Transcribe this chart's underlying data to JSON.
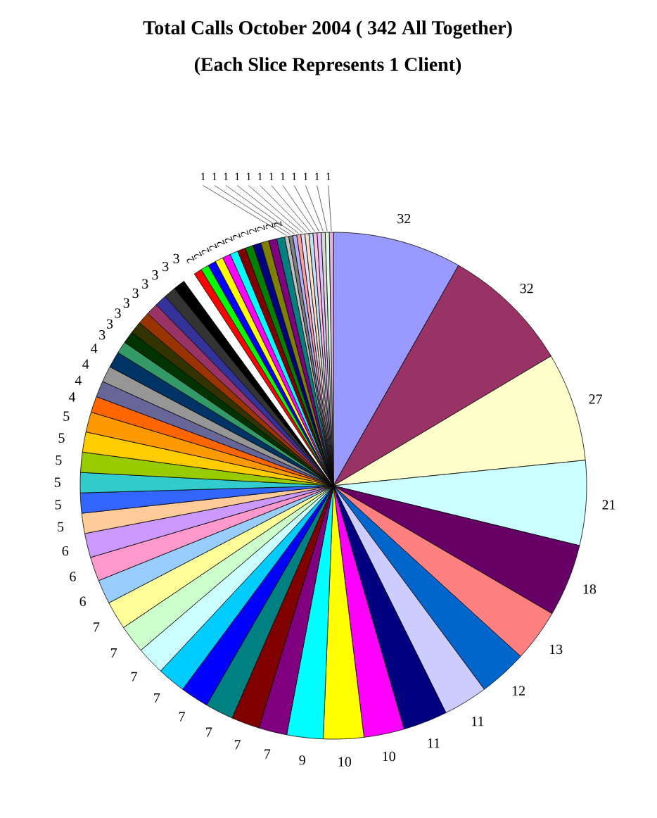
{
  "chart_data": {
    "type": "pie",
    "title": "Total Calls  October 2004 ( 342 All Together)",
    "subtitle": "(Each Slice Represents 1 Client)",
    "data_labels": true,
    "categories": [
      null,
      null,
      null,
      null,
      null,
      null,
      null,
      null,
      null,
      null,
      null,
      null,
      null,
      null,
      null,
      null,
      null,
      null,
      null,
      null,
      null,
      null,
      null,
      null,
      null,
      null,
      null,
      null,
      null,
      null,
      null,
      null,
      null,
      null,
      null,
      null,
      null,
      null,
      null,
      null,
      null,
      null,
      null,
      null,
      null,
      null,
      null,
      null,
      null,
      null,
      null,
      null,
      null,
      null,
      null,
      null,
      null,
      null,
      null,
      null,
      null,
      null,
      null,
      null,
      null,
      null
    ],
    "values": [
      32,
      32,
      27,
      21,
      18,
      13,
      12,
      11,
      11,
      10,
      10,
      9,
      7,
      7,
      7,
      7,
      7,
      7,
      7,
      7,
      6,
      6,
      6,
      5,
      5,
      5,
      5,
      5,
      5,
      4,
      4,
      4,
      4,
      3,
      3,
      3,
      3,
      3,
      3,
      3,
      3,
      3,
      2,
      2,
      2,
      2,
      2,
      2,
      2,
      2,
      2,
      2,
      2,
      2,
      1,
      1,
      1,
      1,
      1,
      1,
      1,
      1,
      1,
      1,
      1,
      1
    ],
    "colors": [
      "#9999ff",
      "#993366",
      "#ffffcc",
      "#ccffff",
      "#660066",
      "#ff8080",
      "#0066cc",
      "#ccccff",
      "#000080",
      "#ff00ff",
      "#ffff00",
      "#00ffff",
      "#800080",
      "#800000",
      "#008080",
      "#0000ff",
      "#00ccff",
      "#ccffff",
      "#ccffcc",
      "#ffff99",
      "#99ccff",
      "#ff99cc",
      "#cc99ff",
      "#ffcc99",
      "#3366ff",
      "#33cccc",
      "#99cc00",
      "#ffcc00",
      "#ff9900",
      "#ff6600",
      "#666699",
      "#969696",
      "#003366",
      "#339966",
      "#003300",
      "#333300",
      "#993300",
      "#993366",
      "#333399",
      "#333333",
      "#000000",
      "#ffffff",
      "#ff0000",
      "#00ff00",
      "#0000ff",
      "#ffff00",
      "#ff00ff",
      "#00ffff",
      "#800000",
      "#008000",
      "#000080",
      "#808000",
      "#800080",
      "#008080",
      "#c0c0c0",
      "#808080",
      "#b0b0ff",
      "#ffa0a0",
      "#e0e0ff",
      "#ffe0c0",
      "#c0e0ff",
      "#ffc0e0",
      "#e0c0ff",
      "#d8d8d8",
      "#e0ffe0",
      "#e8b0e8"
    ]
  }
}
